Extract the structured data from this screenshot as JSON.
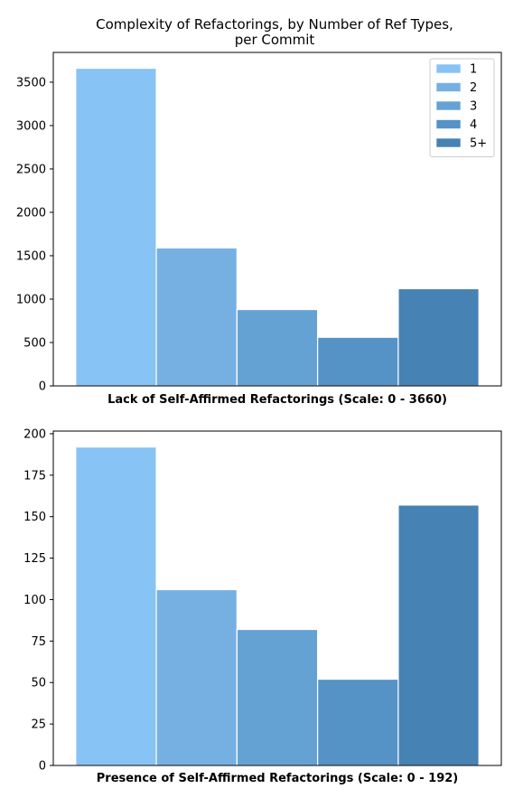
{
  "figure": {
    "title_line1": "Complexity of Refactorings, by Number of Ref Types,",
    "title_line2": "per Commit"
  },
  "colors": {
    "bars": [
      "#87c3f5",
      "#76b0e3",
      "#65a2d4",
      "#5592c5",
      "#4682b4"
    ],
    "bar_edge": "#ffffff",
    "axes": "#000000"
  },
  "legend": {
    "placement": "top-right",
    "entries": [
      "1",
      "2",
      "3",
      "4",
      "5+"
    ]
  },
  "chart_data": [
    {
      "type": "bar",
      "categories": [
        "1",
        "2",
        "3",
        "4",
        "5+"
      ],
      "values": [
        3660,
        1590,
        880,
        560,
        1120
      ],
      "title": "",
      "xlabel": "Lack of Self-Affirmed Refactorings (Scale: 0 - 3660)",
      "ylabel": "",
      "ylim": [
        0,
        3843
      ],
      "yticks": [
        0,
        500,
        1000,
        1500,
        2000,
        2500,
        3000,
        3500
      ],
      "grid": false,
      "legend": "top-right"
    },
    {
      "type": "bar",
      "categories": [
        "1",
        "2",
        "3",
        "4",
        "5+"
      ],
      "values": [
        192,
        106,
        82,
        52,
        157
      ],
      "title": "",
      "xlabel": "Presence of Self-Affirmed Refactorings (Scale: 0 - 192)",
      "ylabel": "",
      "ylim": [
        0,
        201.6
      ],
      "yticks": [
        0,
        25,
        50,
        75,
        100,
        125,
        150,
        175,
        200
      ],
      "grid": false,
      "legend": "none"
    }
  ]
}
